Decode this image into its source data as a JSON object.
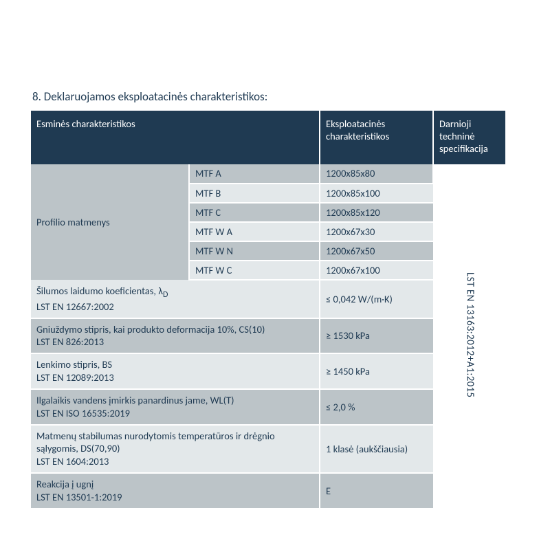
{
  "title": "8. Deklaruojamos eksploatacinės charakteristikos:",
  "header": {
    "col1": "Esminės charakteristikos",
    "col2": "Eksploatacinės charakteristikos",
    "col3": "Darnioji techninė specifikacija"
  },
  "profile": {
    "label": "Profilio matmenys",
    "rows": [
      {
        "name": "MTF A",
        "value": "1200x85x80"
      },
      {
        "name": "MTF B",
        "value": "1200x85x100"
      },
      {
        "name": "MTF C",
        "value": "1200x85x120"
      },
      {
        "name": "MTF W A",
        "value": "1200x67x30"
      },
      {
        "name": "MTF W N",
        "value": "1200x67x50"
      },
      {
        "name": "MTF W C",
        "value": "1200x67x100"
      }
    ]
  },
  "props": [
    {
      "label": "Šilumos laidumo koeficientas, λ",
      "sub": "D",
      "std": "LST EN 12667:2002",
      "value": "≤ 0,042 W/(m·K)"
    },
    {
      "label": "Gniuždymo stipris, kai produkto deformacija 10%, CS(10)",
      "std": "LST EN 826:2013",
      "value": "≥ 1530 kPa"
    },
    {
      "label": "Lenkimo stipris, BS",
      "std": "LST EN 12089:2013",
      "value": "≥ 1450 kPa"
    },
    {
      "label": "Ilgalaikis vandens įmirkis panardinus jame, WL(T)",
      "std": "LST EN ISO 16535:2019",
      "value": "≤ 2,0 %"
    },
    {
      "label": "Matmenų stabilumas nurodytomis temperatūros ir drėgnio sąlygomis, DS(70,90)",
      "std": "LST EN 1604:2013",
      "value": "1 klasė (aukščiausia)"
    },
    {
      "label": "Reakcija į ugnį",
      "std": "LST EN 13501-1:2019",
      "value": "E"
    }
  ],
  "harmonised_spec": "LST EN 13163:2012+A1:2015",
  "colors": {
    "header_bg": "#1f3a52",
    "row_dark": "#bcc4c8",
    "row_light": "#e3e8ea",
    "text": "#1f3a52",
    "border": "#ffffff"
  }
}
